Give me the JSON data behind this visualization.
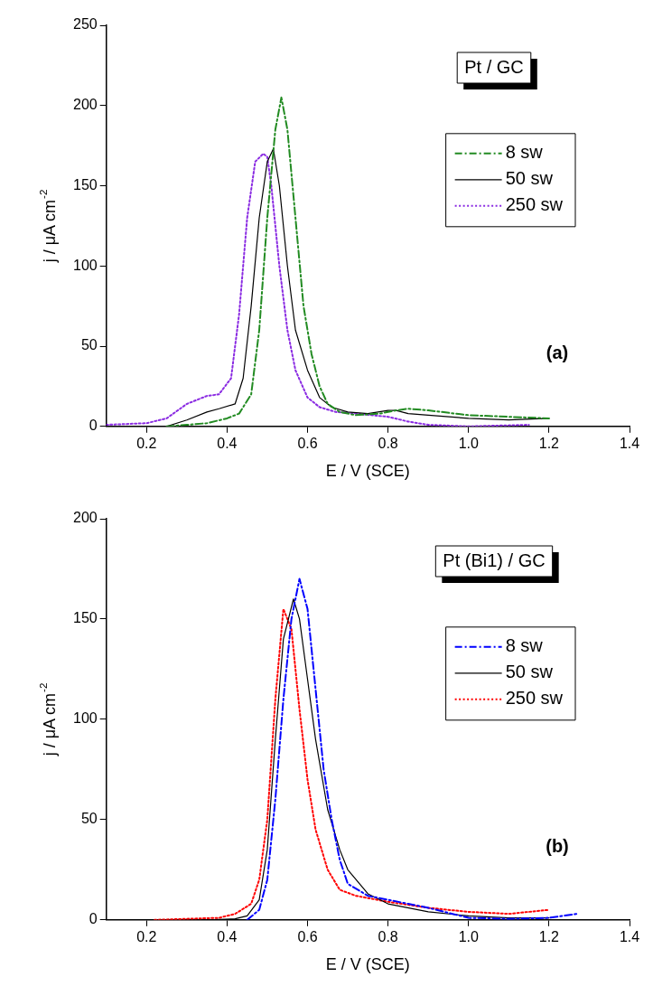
{
  "chart_data": [
    {
      "type": "line",
      "xlabel": "E / V (SCE)",
      "ylabel": "j / μA cm$^{-2}$",
      "annotations": [
        "Pt / GC",
        "(a)"
      ],
      "xlim": [
        0.1,
        1.4
      ],
      "xticks": [
        0.2,
        0.4,
        0.6,
        0.8,
        {
          "value": 1,
          "label": "1.0"
        },
        1.2,
        1.4
      ],
      "ylim": [
        0,
        250
      ],
      "yticks": [
        0,
        50,
        100,
        150,
        200,
        250
      ],
      "legend": "right",
      "marker": "none",
      "series": [
        {
          "name": "8 sw",
          "color": "#228b22",
          "line_style": "dashed",
          "x": [
            0.25,
            0.3,
            0.35,
            0.4,
            0.43,
            0.46,
            0.48,
            0.5,
            0.52,
            0.535,
            0.55,
            0.57,
            0.59,
            0.61,
            0.63,
            0.65,
            0.68,
            0.72,
            0.78,
            0.82,
            0.85,
            0.9,
            1.0,
            1.1,
            1.2
          ],
          "values": [
            0,
            1,
            2,
            5,
            8,
            20,
            60,
            130,
            185,
            205,
            185,
            130,
            75,
            45,
            25,
            14,
            9,
            7,
            8,
            10,
            11,
            10,
            7,
            6,
            5
          ]
        },
        {
          "name": "50 sw",
          "color": "#000000",
          "line_style": "solid",
          "x": [
            0.25,
            0.3,
            0.35,
            0.38,
            0.42,
            0.44,
            0.46,
            0.48,
            0.5,
            0.515,
            0.53,
            0.55,
            0.57,
            0.6,
            0.63,
            0.66,
            0.7,
            0.75,
            0.8,
            0.82,
            0.85,
            0.9,
            1.0,
            1.1,
            1.2
          ],
          "values": [
            0,
            4,
            9,
            11,
            14,
            30,
            75,
            130,
            165,
            173,
            150,
            100,
            60,
            35,
            18,
            12,
            9,
            8,
            10,
            10,
            8,
            7,
            5,
            4,
            5
          ]
        },
        {
          "name": "250 sw",
          "color": "#8a2be2",
          "line_style": "dotted",
          "x": [
            0.1,
            0.2,
            0.25,
            0.3,
            0.35,
            0.38,
            0.41,
            0.43,
            0.45,
            0.47,
            0.49,
            0.5,
            0.51,
            0.53,
            0.55,
            0.57,
            0.6,
            0.63,
            0.67,
            0.72,
            0.8,
            0.85,
            0.9,
            1.0,
            1.15
          ],
          "values": [
            1,
            2,
            5,
            14,
            19,
            20,
            30,
            70,
            130,
            165,
            170,
            168,
            150,
            100,
            60,
            35,
            18,
            12,
            9,
            8,
            6,
            3,
            1,
            0,
            1
          ]
        }
      ]
    },
    {
      "type": "line",
      "xlabel": "E / V (SCE)",
      "ylabel": "j / μA cm$^{-2}$",
      "annotations": [
        "Pt (Bi1) / GC",
        "(b)"
      ],
      "xlim": [
        0.1,
        1.4
      ],
      "xticks": [
        0.2,
        0.4,
        0.6,
        0.8,
        {
          "value": 1,
          "label": "1.0"
        },
        1.2,
        1.4
      ],
      "ylim": [
        0,
        200
      ],
      "yticks": [
        0,
        50,
        100,
        150,
        200
      ],
      "legend": "right",
      "marker": "none",
      "series": [
        {
          "name": "8 sw",
          "color": "#0000ff",
          "line_style": "dashed",
          "x": [
            0.45,
            0.48,
            0.5,
            0.52,
            0.54,
            0.56,
            0.58,
            0.6,
            0.62,
            0.64,
            0.66,
            0.68,
            0.7,
            0.75,
            0.8,
            0.85,
            0.9,
            1.0,
            1.1,
            1.2,
            1.27
          ],
          "values": [
            0,
            5,
            20,
            60,
            110,
            150,
            170,
            155,
            115,
            75,
            50,
            30,
            18,
            12,
            10,
            8,
            6,
            1,
            0.5,
            1,
            3
          ]
        },
        {
          "name": "50 sw",
          "color": "#000000",
          "line_style": "solid",
          "x": [
            0.35,
            0.42,
            0.45,
            0.48,
            0.5,
            0.52,
            0.54,
            0.565,
            0.58,
            0.6,
            0.62,
            0.65,
            0.68,
            0.7,
            0.75,
            0.8,
            0.9,
            1.0,
            1.1,
            1.2
          ],
          "values": [
            0,
            0.5,
            2,
            10,
            35,
            90,
            140,
            160,
            150,
            120,
            90,
            55,
            35,
            25,
            13,
            8,
            4,
            2,
            1,
            1
          ]
        },
        {
          "name": "250 sw",
          "color": "#ff0000",
          "line_style": "dotted",
          "x": [
            0.22,
            0.3,
            0.38,
            0.42,
            0.46,
            0.48,
            0.5,
            0.52,
            0.54,
            0.56,
            0.58,
            0.6,
            0.62,
            0.65,
            0.68,
            0.72,
            0.8,
            0.9,
            1.0,
            1.1,
            1.2
          ],
          "values": [
            0,
            0.5,
            1,
            3,
            8,
            20,
            50,
            110,
            155,
            145,
            105,
            70,
            45,
            25,
            15,
            12,
            9,
            6,
            4,
            3,
            5
          ]
        }
      ]
    }
  ]
}
